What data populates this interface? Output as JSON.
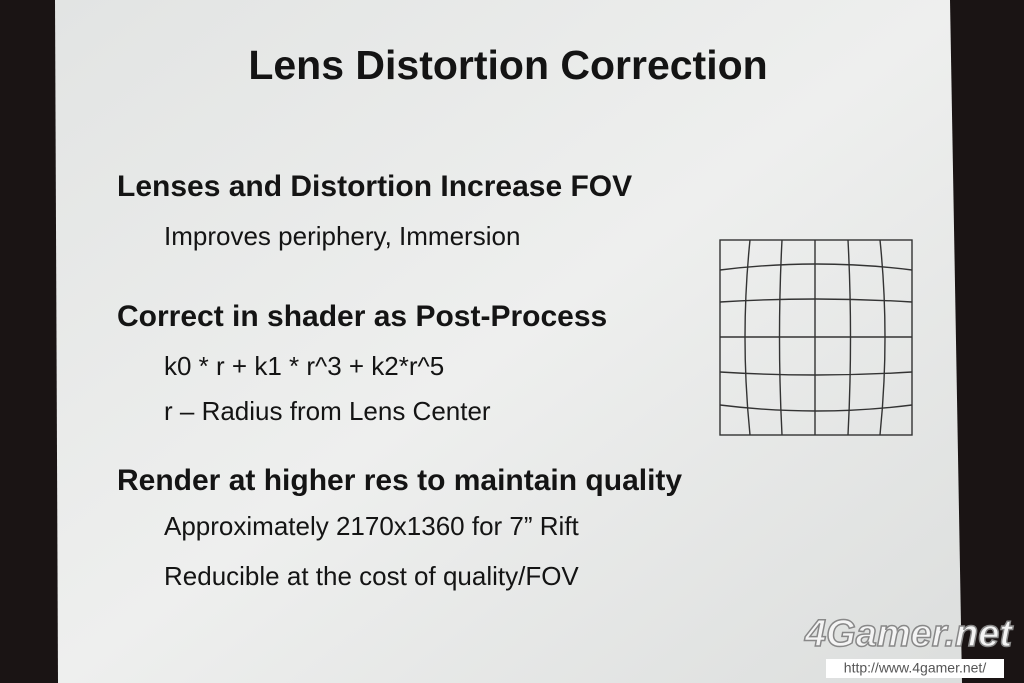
{
  "slide": {
    "title": "Lens Distortion Correction",
    "sections": [
      {
        "heading": "Lenses and Distortion Increase FOV",
        "items": [
          "Improves periphery, Immersion"
        ]
      },
      {
        "heading": "Correct in shader as Post-Process",
        "items": [
          "k0 * r + k1 * r^3 + k2*r^5",
          "r – Radius from Lens Center"
        ]
      },
      {
        "heading": "Render at higher res to maintain quality",
        "items": [
          "Approximately 2170x1360 for 7” Rift",
          "Reducible at the cost of quality/FOV"
        ]
      }
    ]
  },
  "watermark": {
    "logo": "4Gamer.net",
    "url": "http://www.4gamer.net/"
  }
}
